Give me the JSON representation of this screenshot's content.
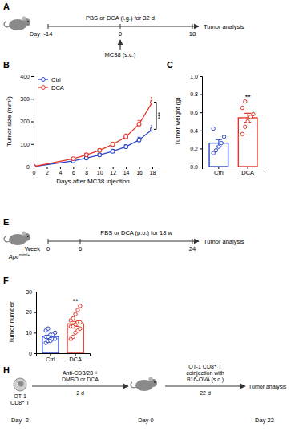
{
  "chart_data": [
    {
      "type": "line",
      "x_label": "Days after MC38 injection",
      "y_label": "Tumor size (mm³)",
      "x": [
        0,
        6,
        8,
        10,
        12,
        14,
        16,
        18
      ],
      "series": [
        {
          "name": "Ctrl",
          "color": "#2b46c8",
          "marker": "circle",
          "values": [
            0,
            25,
            38,
            52,
            68,
            88,
            118,
            165
          ],
          "errors": [
            0,
            3,
            4,
            5,
            7,
            9,
            12,
            16
          ]
        },
        {
          "name": "DCA",
          "color": "#e2352b",
          "marker": "circle",
          "values": [
            0,
            35,
            52,
            72,
            98,
            132,
            188,
            285
          ],
          "errors": [
            0,
            4,
            5,
            7,
            9,
            12,
            16,
            20
          ]
        }
      ],
      "xlim": [
        0,
        18
      ],
      "xticks": [
        0,
        2,
        4,
        6,
        8,
        10,
        12,
        14,
        16,
        18
      ],
      "ylim": [
        0,
        400
      ],
      "yticks": [
        0,
        100,
        200,
        300,
        400
      ],
      "legend": "upper left",
      "annotations": [
        "***"
      ]
    },
    {
      "type": "bar",
      "y_label": "Tumor weight (g)",
      "categories": [
        "Ctrl",
        "DCA"
      ],
      "values": [
        0.26,
        0.54
      ],
      "errors": [
        0.04,
        0.05
      ],
      "points": [
        [
          0.15,
          0.18,
          0.22,
          0.26,
          0.33,
          0.42
        ],
        [
          0.36,
          0.44,
          0.5,
          0.55,
          0.58,
          0.65,
          0.72
        ]
      ],
      "colors": [
        "#2b46c8",
        "#e2352b"
      ],
      "ylim": [
        0,
        1
      ],
      "yticks": [
        {
          "value": 0,
          "label": "0.0"
        },
        {
          "value": 0.2,
          "label": "0.2"
        },
        {
          "value": 0.4,
          "label": "0.4"
        },
        {
          "value": 0.6,
          "label": "0.6"
        },
        {
          "value": 0.8,
          "label": "0.8"
        },
        {
          "value": 1,
          "label": "1.0"
        }
      ],
      "significance": [
        null,
        "**"
      ]
    },
    {
      "type": "bar",
      "y_label": "Tumor number",
      "categories": [
        "Ctrl",
        "DCA"
      ],
      "values": [
        8.2,
        14.3
      ],
      "errors": [
        0.6,
        1.2
      ],
      "points": [
        [
          5,
          6,
          6,
          7,
          7,
          8,
          8,
          9,
          9,
          10,
          11,
          12
        ],
        [
          7,
          8,
          10,
          11,
          12,
          13,
          13,
          14,
          15,
          15,
          16,
          17,
          19,
          21,
          23
        ]
      ],
      "colors": [
        "#2b46c8",
        "#e2352b"
      ],
      "ylim": [
        0,
        30
      ],
      "yticks": [
        0,
        10,
        20,
        30
      ],
      "significance": [
        null,
        "**"
      ]
    }
  ],
  "figure": {
    "panel_labels": [
      "A",
      "B",
      "C",
      "E",
      "F",
      "H"
    ]
  },
  "schematics": [
    {
      "unit": "Day",
      "ticks": [
        -14,
        0,
        18
      ],
      "treatment": "PBS or DCA (i.g.) for 32 d",
      "injection": "MC38 (s.c.)",
      "endpoint": "Tumor analysis"
    },
    {
      "unit": "Week",
      "ticks": [
        0,
        6,
        24
      ],
      "treatment": "PBS or DCA (p.o.) for 18 w",
      "mouse_label": "Apc",
      "mouse_label_sup": "min/+",
      "endpoint": "Tumor analysis"
    },
    {
      "cell_label": [
        "OT-1",
        "CD8⁺ T"
      ],
      "activation": [
        "Anti-CD3/28 +",
        "DMSO or DCA"
      ],
      "activation_time": "2 d",
      "transfer": [
        "OT-1 CD8⁺ T",
        "coinjection with",
        "B16-OVA (s.c.)"
      ],
      "transfer_time": "22 d",
      "endpoint": "Tumor analysis",
      "days": [
        "Day -2",
        "Day 0",
        "Day 22"
      ]
    }
  ]
}
